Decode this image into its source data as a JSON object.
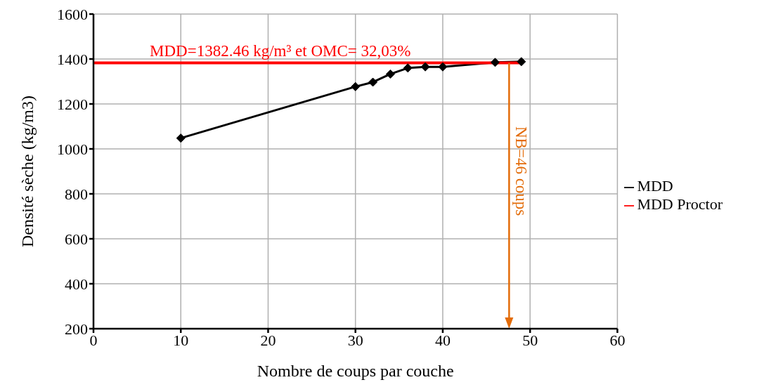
{
  "chart_data": {
    "type": "line",
    "xlabel": "Nombre de coups par couche",
    "ylabel": "Densité sèche (kg/m3)",
    "xlim": [
      0,
      60
    ],
    "xticks": [
      0,
      10,
      20,
      30,
      40,
      50,
      60
    ],
    "ylim": [
      200,
      1600
    ],
    "yticks": [
      200,
      400,
      600,
      800,
      1000,
      1200,
      1400,
      1600
    ],
    "grid": true,
    "legend": "right",
    "marker": "diamond",
    "line_style": "solid",
    "series": [
      {
        "name": "MDD",
        "color": "#000000",
        "x": [
          10,
          30,
          32,
          34,
          36,
          38,
          40,
          46,
          49
        ],
        "values": [
          1048,
          1277,
          1297,
          1333,
          1360,
          1365,
          1365,
          1385,
          1388
        ]
      },
      {
        "name": "MDD Proctor",
        "color": "#ff0000",
        "marker": "none",
        "x": [
          0,
          49
        ],
        "values": [
          1382.46,
          1382.46
        ]
      }
    ],
    "annotations": [
      "MDD=1382.46 kg/m³ et OMC= 32,03%",
      {
        "text": "NB=46 coups",
        "x": 47.6,
        "y": 1100
      }
    ],
    "ref_lines": [
      {
        "axis": "x",
        "value": 47.6,
        "color": "#e36c09"
      }
    ]
  }
}
